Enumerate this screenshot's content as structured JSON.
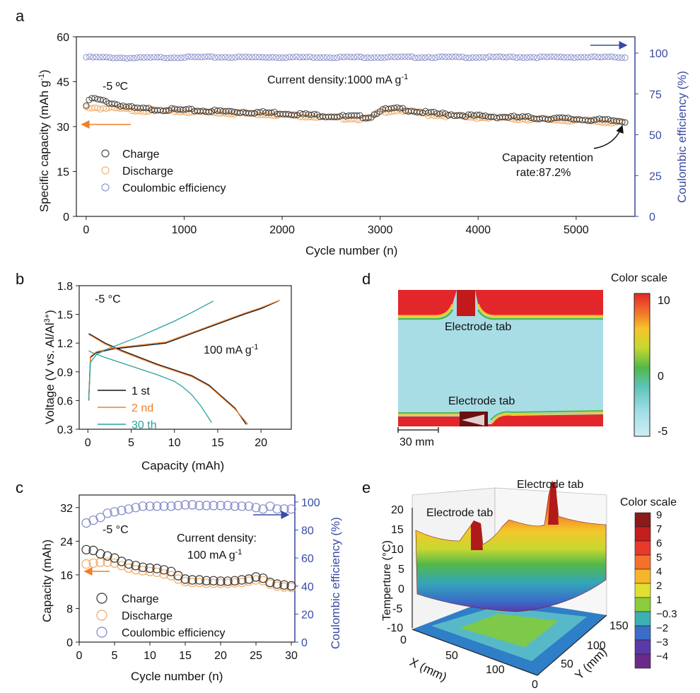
{
  "panels": {
    "a": "a",
    "b": "b",
    "c": "c",
    "d": "d",
    "e": "e"
  },
  "colors": {
    "charge": "#333333",
    "discharge": "#f0a860",
    "ce": "#7f86c9",
    "axis_right": "#3a4ba3",
    "arrow_left": "#f07e2a",
    "v1st": "#111111",
    "v2nd": "#f07e2a",
    "v30th": "#2aa29b"
  },
  "panel_a": {
    "temperature": "-5 ºC",
    "current_density": "Current density:1000 mA g",
    "current_density_sup": "-1",
    "ylabel_left": "Specific capacity (mAh g",
    "ylabel_left_sup": "-1",
    "ylabel_left_end": ")",
    "ylabel_right": "Coulombic efficiency (%)",
    "xlabel": "Cycle number (n)",
    "retention_line1": "Capacity retention",
    "retention_line2": "rate:87.2%",
    "legend": [
      "Charge",
      "Discharge",
      "Coulombic efficiency"
    ],
    "x_ticks": [
      "0",
      "1000",
      "2000",
      "3000",
      "4000",
      "5000"
    ],
    "y_left_ticks": [
      "0",
      "15",
      "30",
      "45",
      "60"
    ],
    "y_right_ticks": [
      "0",
      "25",
      "50",
      "75",
      "100"
    ]
  },
  "panel_b": {
    "temperature": "-5 °C",
    "current": "100 mA g",
    "current_sup": "-1",
    "ylabel": "Voltage (V vs. Al/Al",
    "ylabel_sup": "3+",
    "ylabel_end": ")",
    "xlabel": "Capacity (mAh)",
    "legend": [
      "1 st",
      "2 nd",
      "30 th"
    ],
    "x_ticks": [
      "0",
      "5",
      "10",
      "15",
      "20"
    ],
    "y_ticks": [
      "0.3",
      "0.6",
      "0.9",
      "1.2",
      "1.5",
      "1.8"
    ]
  },
  "panel_c": {
    "temperature": "-5 °C",
    "current_line1": "Current density:",
    "current_line2": "100 mA g",
    "current_sup": "-1",
    "ylabel_left": "Capacity (mAh)",
    "ylabel_right": "Coulombic efficiency (%)",
    "xlabel": "Cycle number (n)",
    "legend": [
      "Charge",
      "Discharge",
      "Coulombic efficiency"
    ],
    "x_ticks": [
      "0",
      "5",
      "10",
      "15",
      "20",
      "25",
      "30"
    ],
    "y_left_ticks": [
      "0",
      "8",
      "16",
      "24",
      "32"
    ],
    "y_right_ticks": [
      "0",
      "20",
      "40",
      "60",
      "80",
      "100"
    ]
  },
  "panel_d": {
    "title": "Color scale",
    "tab_top": "Electrode tab",
    "tab_bottom": "Electrode tab",
    "scale_bar": "30 mm",
    "scale_ticks": [
      "10",
      "0",
      "-5"
    ]
  },
  "panel_e": {
    "title": "Color scale",
    "tab_left": "Electrode tab",
    "tab_right": "Electrode tab",
    "zlabel": "Temperture (°C)",
    "xlabel": "X (mm)",
    "ylabel": "Y (mm)",
    "z_ticks": [
      "20",
      "15",
      "10",
      "5",
      "0",
      "-5",
      "-10"
    ],
    "x_ticks": [
      "0",
      "50",
      "100"
    ],
    "y_ticks": [
      "0",
      "50",
      "100",
      "150"
    ],
    "scale_ticks": [
      "9",
      "7",
      "6",
      "5",
      "4",
      "2",
      "1",
      "−0.3",
      "−2",
      "−3",
      "−4"
    ],
    "scale_colors": [
      "#8b1a1a",
      "#c41e1e",
      "#e83a2a",
      "#f5702a",
      "#f7b52a",
      "#e0e032",
      "#8ccc3c",
      "#3cb0b0",
      "#3a6cc8",
      "#5a3aa8",
      "#6a2a8a"
    ]
  },
  "chart_data": [
    {
      "id": "a",
      "type": "scatter",
      "title": "",
      "xlabel": "Cycle number (n)",
      "ylabel": "Specific capacity (mAh g-1)",
      "ylabel_right": "Coulombic efficiency (%)",
      "xlim": [
        -100,
        5600
      ],
      "ylim": [
        0,
        60
      ],
      "ylim_right": [
        0,
        110
      ],
      "series": [
        {
          "name": "Charge",
          "axis": "left",
          "x": [
            0,
            50,
            500,
            1000,
            1500,
            2000,
            2500,
            2900,
            3000,
            3200,
            3500,
            4000,
            4500,
            5000,
            5500
          ],
          "values": [
            37,
            39.5,
            36,
            35.5,
            35,
            34.5,
            33.5,
            33.2,
            35.5,
            36,
            34.5,
            33.5,
            33,
            32.5,
            31.8
          ]
        },
        {
          "name": "Discharge",
          "axis": "left",
          "x": [
            0,
            500,
            1000,
            1500,
            2000,
            2500,
            2900,
            3000,
            3200,
            3500,
            4000,
            4500,
            5000,
            5500
          ],
          "values": [
            36.5,
            35.5,
            35,
            34.5,
            34,
            33,
            32.5,
            35,
            35.5,
            34,
            33,
            32.5,
            32,
            31.3
          ]
        },
        {
          "name": "Coulombic efficiency",
          "axis": "right",
          "x": [
            0,
            500,
            1000,
            2000,
            3000,
            4000,
            5000,
            5500
          ],
          "values": [
            97.5,
            97,
            97.5,
            97.5,
            97.5,
            97.5,
            97.5,
            97.5
          ]
        }
      ]
    },
    {
      "id": "b",
      "type": "line",
      "xlabel": "Capacity (mAh)",
      "ylabel": "Voltage (V vs. Al/Al3+)",
      "xlim": [
        -1,
        23.5
      ],
      "ylim": [
        0.3,
        1.8
      ],
      "series": [
        {
          "name": "1 st charge",
          "x": [
            0.1,
            0.3,
            1,
            3,
            6,
            9,
            12,
            15,
            18,
            20,
            22
          ],
          "values": [
            0.6,
            1.05,
            1.1,
            1.14,
            1.17,
            1.2,
            1.3,
            1.4,
            1.5,
            1.56,
            1.64
          ]
        },
        {
          "name": "1 st discharge",
          "x": [
            0.1,
            0.5,
            2,
            4,
            6,
            8,
            10,
            11,
            12,
            14,
            15,
            16,
            17,
            18.3
          ],
          "values": [
            1.3,
            1.28,
            1.2,
            1.12,
            1.05,
            0.98,
            0.92,
            0.89,
            0.86,
            0.76,
            0.68,
            0.6,
            0.52,
            0.35
          ]
        },
        {
          "name": "2 nd charge",
          "x": [
            0.1,
            0.3,
            1,
            3,
            6,
            9,
            12,
            15,
            18,
            20,
            22.2
          ],
          "values": [
            0.62,
            1.06,
            1.11,
            1.15,
            1.18,
            1.21,
            1.31,
            1.41,
            1.51,
            1.57,
            1.65
          ]
        },
        {
          "name": "2 nd discharge",
          "x": [
            0.1,
            0.5,
            2,
            4,
            6,
            8,
            10,
            11,
            12,
            14,
            15,
            16,
            17,
            18.5
          ],
          "values": [
            1.29,
            1.27,
            1.19,
            1.11,
            1.04,
            0.97,
            0.91,
            0.88,
            0.85,
            0.75,
            0.67,
            0.59,
            0.51,
            0.35
          ]
        },
        {
          "name": "30 th charge",
          "x": [
            0.1,
            0.3,
            1,
            2,
            4,
            6,
            8,
            10,
            12,
            14.5
          ],
          "values": [
            0.6,
            1.0,
            1.08,
            1.13,
            1.2,
            1.27,
            1.35,
            1.43,
            1.52,
            1.64
          ]
        },
        {
          "name": "30 th discharge",
          "x": [
            0.1,
            0.5,
            2,
            4,
            6,
            8,
            10,
            11,
            12,
            13,
            14.3
          ],
          "values": [
            1.12,
            1.1,
            1.05,
            0.99,
            0.93,
            0.87,
            0.8,
            0.74,
            0.66,
            0.55,
            0.37
          ]
        }
      ]
    },
    {
      "id": "c",
      "type": "scatter",
      "xlabel": "Cycle number (n)",
      "ylabel": "Capacity (mAh)",
      "ylabel_right": "Coulombic efficiency (%)",
      "xlim": [
        0,
        30.5
      ],
      "ylim": [
        0,
        35
      ],
      "ylim_right": [
        0,
        105
      ],
      "series": [
        {
          "name": "Charge",
          "axis": "left",
          "x": [
            1,
            2,
            3,
            4,
            5,
            6,
            7,
            8,
            9,
            10,
            11,
            12,
            13,
            14,
            15,
            16,
            17,
            18,
            19,
            20,
            21,
            22,
            23,
            24,
            25,
            26,
            27,
            28,
            29,
            30
          ],
          "values": [
            22,
            21.8,
            21,
            20.5,
            20,
            19.2,
            18.6,
            18.2,
            17.8,
            17.6,
            17.5,
            17.2,
            16.8,
            15.8,
            15,
            14.8,
            14.8,
            14.6,
            14.6,
            14.5,
            14.5,
            14.6,
            14.8,
            15.0,
            15.5,
            15.2,
            14.2,
            13.8,
            13.6,
            13.4
          ]
        },
        {
          "name": "Discharge",
          "axis": "left",
          "x": [
            1,
            2,
            3,
            4,
            5,
            6,
            7,
            8,
            9,
            10,
            11,
            12,
            13,
            14,
            15,
            16,
            17,
            18,
            19,
            20,
            21,
            22,
            23,
            24,
            25,
            26,
            27,
            28,
            29,
            30
          ],
          "values": [
            18.6,
            18.8,
            19,
            19,
            18.8,
            18.2,
            17.6,
            17.2,
            17,
            16.8,
            16.6,
            16.2,
            15.8,
            15,
            14.4,
            14.2,
            14.2,
            14,
            14,
            14,
            14,
            14.1,
            14.2,
            14.5,
            14.8,
            14.6,
            13.8,
            13.3,
            13.1,
            13
          ]
        },
        {
          "name": "Coulombic efficiency",
          "axis": "right",
          "x": [
            1,
            2,
            3,
            4,
            5,
            6,
            7,
            8,
            9,
            10,
            11,
            12,
            13,
            14,
            15,
            16,
            17,
            18,
            19,
            20,
            21,
            22,
            23,
            24,
            25,
            26,
            27,
            28,
            29,
            30
          ],
          "values": [
            85,
            87,
            89,
            92,
            93,
            94,
            95,
            96,
            97,
            97,
            97,
            97,
            97,
            97.5,
            98,
            98,
            97.5,
            97.5,
            97.5,
            97.5,
            97.5,
            97,
            97,
            97,
            96,
            95,
            97,
            95,
            95,
            95
          ]
        }
      ]
    }
  ]
}
